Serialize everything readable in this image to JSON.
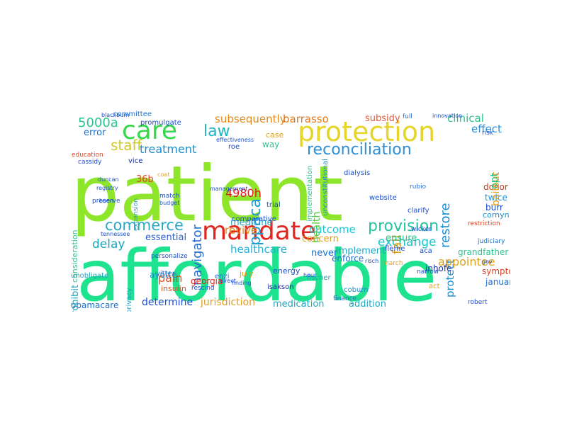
{
  "word_cloud": {
    "words": [
      {
        "text": "patient",
        "color": "#8ee62a"
      },
      {
        "text": "affordable",
        "color": "#1de38e"
      },
      {
        "text": "protection",
        "color": "#e6d42a"
      },
      {
        "text": "care",
        "color": "#33d94a"
      },
      {
        "text": "mandate",
        "color": "#e0261f"
      },
      {
        "text": "reconciliation",
        "color": "#2a8fd8"
      },
      {
        "text": "provision",
        "color": "#22c6a0"
      },
      {
        "text": "commerce",
        "color": "#2aa8c8"
      },
      {
        "text": "law",
        "color": "#1fb3c4"
      },
      {
        "text": "staff",
        "color": "#d4c72a"
      },
      {
        "text": "treatment",
        "color": "#1a8fd0"
      },
      {
        "text": "ppaca",
        "color": "#1e9ad6"
      },
      {
        "text": "exchange",
        "color": "#19c2c9"
      },
      {
        "text": "healthcare",
        "color": "#25b0d8"
      },
      {
        "text": "navigator",
        "color": "#2a6fd0"
      },
      {
        "text": "delay",
        "color": "#1aa5b5"
      },
      {
        "text": "4980h",
        "color": "#e02020"
      },
      {
        "text": "5000a",
        "color": "#2ac58e"
      },
      {
        "text": "subsequently",
        "color": "#e08a1f"
      },
      {
        "text": "barrasso",
        "color": "#e07a1f"
      },
      {
        "text": "subsidy",
        "color": "#e05a3a"
      },
      {
        "text": "clinical",
        "color": "#2ac58e"
      },
      {
        "text": "effect",
        "color": "#2a8fd8"
      },
      {
        "text": "restore",
        "color": "#1a8fd0"
      },
      {
        "text": "fall",
        "color": "#e0a01f"
      },
      {
        "text": "health",
        "color": "#4cc93a"
      },
      {
        "text": "revive",
        "color": "#e08a1f"
      },
      {
        "text": "medicine",
        "color": "#1fa5c4"
      },
      {
        "text": "essential",
        "color": "#2a5fd0"
      },
      {
        "text": "outcome",
        "color": "#1fc4d0"
      },
      {
        "text": "concern",
        "color": "#e0a01f"
      },
      {
        "text": "ensure",
        "color": "#2ac58e"
      },
      {
        "text": "protect",
        "color": "#1a8fd0"
      },
      {
        "text": "appointee",
        "color": "#e0a01f"
      },
      {
        "text": "addition",
        "color": "#1fa5c4"
      },
      {
        "text": "medication",
        "color": "#1fa5c4"
      },
      {
        "text": "jurisdiction",
        "color": "#e0a01f"
      },
      {
        "text": "determine",
        "color": "#1a4fd0"
      },
      {
        "text": "obamacare",
        "color": "#1a6fd0"
      },
      {
        "text": "prohibit",
        "color": "#1fa5c4"
      },
      {
        "text": "pain",
        "color": "#e04a1f"
      },
      {
        "text": "36b",
        "color": "#e04a1f"
      },
      {
        "text": "error",
        "color": "#1a6fd0"
      },
      {
        "text": "never",
        "color": "#1a6fd0"
      },
      {
        "text": "implement",
        "color": "#1fa5c4"
      },
      {
        "text": "enforce",
        "color": "#1a6fd0"
      },
      {
        "text": "inhofe",
        "color": "#1a2fa0"
      },
      {
        "text": "january",
        "color": "#1a6fd0"
      },
      {
        "text": "symptom",
        "color": "#e0401f"
      },
      {
        "text": "grandfather",
        "color": "#2ac58e"
      },
      {
        "text": "donor",
        "color": "#c04020"
      },
      {
        "text": "twice",
        "color": "#1a8fd0"
      },
      {
        "text": "bailout",
        "color": "#e0a01f"
      },
      {
        "text": "opt",
        "color": "#2ac58e"
      },
      {
        "text": "burr",
        "color": "#1a4fd0"
      },
      {
        "text": "cornyn",
        "color": "#1a8fd0"
      },
      {
        "text": "georgia",
        "color": "#e0261f"
      },
      {
        "text": "ayotte",
        "color": "#1a8fd0"
      },
      {
        "text": "july",
        "color": "#e0a01f"
      },
      {
        "text": "energy",
        "color": "#1a4fd0"
      },
      {
        "text": "fischer",
        "color": "#1aa5b5"
      },
      {
        "text": "isakson",
        "color": "#1a2fa0"
      },
      {
        "text": "coburn",
        "color": "#1a8fd0"
      },
      {
        "text": "act",
        "color": "#e0a01f"
      },
      {
        "text": "aca",
        "color": "#1a4fd0"
      },
      {
        "text": "fleme",
        "color": "#1a4fd0"
      },
      {
        "text": "insulin",
        "color": "#e04a1f"
      },
      {
        "text": "privacy",
        "color": "#1fa5c4"
      },
      {
        "text": "unobligate",
        "color": "#1fa5c4"
      },
      {
        "text": "vitter",
        "color": "#2a6fd0"
      },
      {
        "text": "enzi",
        "color": "#2a6fd0"
      },
      {
        "text": "website",
        "color": "#1a4fd0"
      },
      {
        "text": "way",
        "color": "#2ac58e"
      },
      {
        "text": "case",
        "color": "#e0a01f"
      },
      {
        "text": "trial",
        "color": "#1a4fd0"
      },
      {
        "text": "vice",
        "color": "#1a2fa0"
      },
      {
        "text": "committee",
        "color": "#1a6fd0"
      },
      {
        "text": "promulgate",
        "color": "#1a4fd0"
      },
      {
        "text": "consideration",
        "color": "#2ac58e"
      },
      {
        "text": "rescind",
        "color": "#1a4fd0"
      },
      {
        "text": "personalize",
        "color": "#1a4fd0"
      },
      {
        "text": "implementation",
        "color": "#2ac58e"
      },
      {
        "text": "unconstitutional",
        "color": "#1a8fd0"
      },
      {
        "text": "dialysis",
        "color": "#1a4fd0"
      },
      {
        "text": "finance",
        "color": "#2a6fd0"
      },
      {
        "text": "comparative",
        "color": "#1a4fd0"
      },
      {
        "text": "clarify",
        "color": "#1a4fd0"
      },
      {
        "text": "rubio",
        "color": "#2a6fd0"
      },
      {
        "text": "march",
        "color": "#e0a01f"
      },
      {
        "text": "narrow",
        "color": "#1a4fd0"
      },
      {
        "text": "wicker",
        "color": "#1a4fd0"
      },
      {
        "text": "preserve",
        "color": "#1a4fd0"
      },
      {
        "text": "expansion",
        "color": "#1fa5c4"
      },
      {
        "text": "roe",
        "color": "#1a4fd0"
      },
      {
        "text": "match",
        "color": "#1a4fd0"
      },
      {
        "text": "budget",
        "color": "#1a4fd0"
      },
      {
        "text": "robert",
        "color": "#1a4fd0"
      },
      {
        "text": "judiciary",
        "color": "#1a6fd0"
      },
      {
        "text": "restriction",
        "color": "#e0401f"
      },
      {
        "text": "education",
        "color": "#e0401f"
      },
      {
        "text": "cassidy",
        "color": "#1a4fd0"
      },
      {
        "text": "blackburn",
        "color": "#1a4fd0"
      },
      {
        "text": "full",
        "color": "#2a6fd0"
      },
      {
        "text": "innovation",
        "color": "#1a4fd0"
      },
      {
        "text": "risk",
        "color": "#1a4fd0"
      },
      {
        "text": "hour",
        "color": "#1a4fd0"
      },
      {
        "text": "management",
        "color": "#1a4fd0"
      },
      {
        "text": "coat",
        "color": "#e0a01f"
      },
      {
        "text": "direct",
        "color": "#1a4fd0"
      },
      {
        "text": "tennessee",
        "color": "#1a4fd0"
      },
      {
        "text": "gov",
        "color": "#1a4fd0"
      },
      {
        "text": "effectiveness",
        "color": "#1a4fd0"
      },
      {
        "text": "registry",
        "color": "#1a4fd0"
      },
      {
        "text": "duncan",
        "color": "#1a4fd0"
      },
      {
        "text": "been",
        "color": "#1a4fd0"
      },
      {
        "text": "finding",
        "color": "#1a4fd0"
      },
      {
        "text": "risch",
        "color": "#1a4fd0"
      }
    ]
  }
}
